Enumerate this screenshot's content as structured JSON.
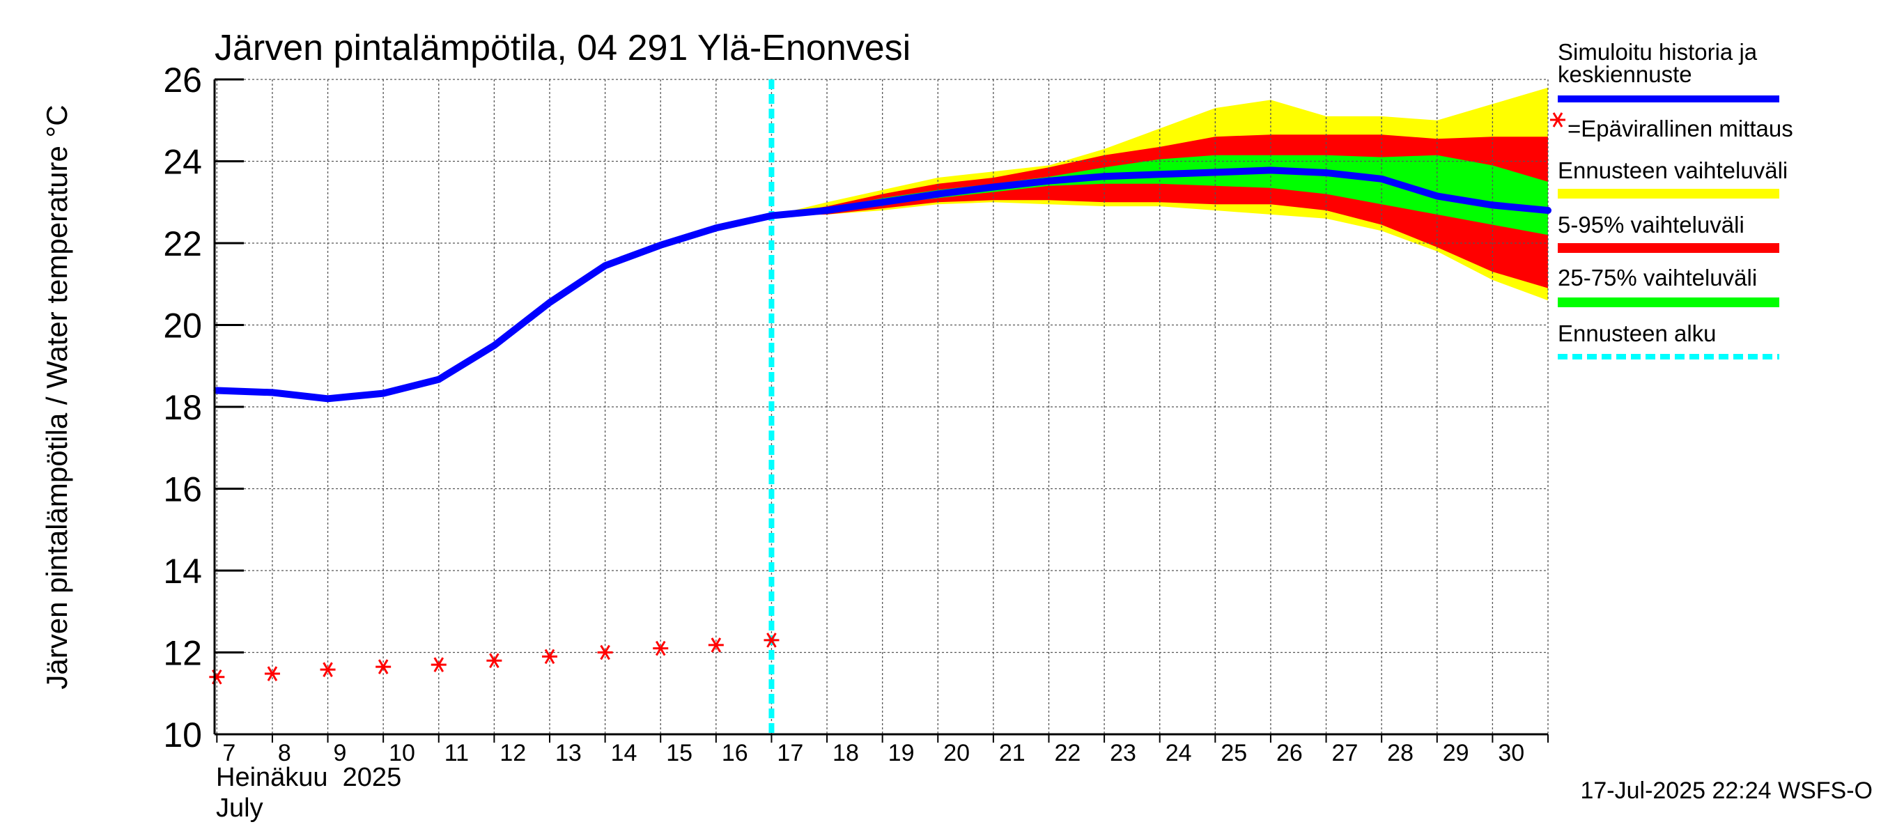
{
  "chart_data": {
    "type": "line",
    "title": "Järven pintalämpötila, 04 291 Ylä-Enonvesi",
    "ylabel": "Järven pintalämpötila / Water temperature °C",
    "ylim": [
      10,
      26
    ],
    "yticks": [
      10,
      12,
      14,
      16,
      18,
      20,
      22,
      24,
      26
    ],
    "xlim": [
      "2025-07-06T23:00",
      "2025-07-31T00:00"
    ],
    "xtick_labels": [
      "7",
      "8",
      "9",
      "10",
      "11",
      "12",
      "13",
      "14",
      "15",
      "16",
      "17",
      "18",
      "19",
      "20",
      "21",
      "22",
      "23",
      "24",
      "25",
      "26",
      "27",
      "28",
      "29",
      "30"
    ],
    "x_caption": {
      "month_fi": "Heinäkuu  2025",
      "month_en": "July"
    },
    "grid": true,
    "legend_position": "right",
    "forecast_start": "2025-07-17T00:00",
    "series": [
      {
        "name": "Simuloitu historia ja keskiennuste",
        "color": "#0000ff",
        "points": [
          [
            "2025-07-07T00:00",
            18.4
          ],
          [
            "2025-07-08T00:00",
            18.35
          ],
          [
            "2025-07-09T00:00",
            18.2
          ],
          [
            "2025-07-10T00:00",
            18.33
          ],
          [
            "2025-07-11T00:00",
            18.67
          ],
          [
            "2025-07-12T00:00",
            19.5
          ],
          [
            "2025-07-13T00:00",
            20.55
          ],
          [
            "2025-07-14T00:00",
            21.45
          ],
          [
            "2025-07-15T00:00",
            21.95
          ],
          [
            "2025-07-16T00:00",
            22.37
          ],
          [
            "2025-07-17T00:00",
            22.67
          ],
          [
            "2025-07-18T00:00",
            22.8
          ],
          [
            "2025-07-19T00:00",
            23.0
          ],
          [
            "2025-07-20T00:00",
            23.2
          ],
          [
            "2025-07-21T00:00",
            23.37
          ],
          [
            "2025-07-22T00:00",
            23.52
          ],
          [
            "2025-07-23T00:00",
            23.63
          ],
          [
            "2025-07-24T00:00",
            23.68
          ],
          [
            "2025-07-25T00:00",
            23.73
          ],
          [
            "2025-07-26T00:00",
            23.78
          ],
          [
            "2025-07-27T00:00",
            23.72
          ],
          [
            "2025-07-28T00:00",
            23.57
          ],
          [
            "2025-07-29T00:00",
            23.15
          ],
          [
            "2025-07-30T00:00",
            22.93
          ],
          [
            "2025-07-31T00:00",
            22.8
          ]
        ]
      },
      {
        "name": "Epävirallinen mittaus",
        "color": "#ff0000",
        "marker": "asterisk",
        "points": [
          [
            "2025-07-07T00:00",
            11.4
          ],
          [
            "2025-07-08T00:00",
            11.48
          ],
          [
            "2025-07-09T00:00",
            11.58
          ],
          [
            "2025-07-10T00:00",
            11.65
          ],
          [
            "2025-07-11T00:00",
            11.7
          ],
          [
            "2025-07-12T00:00",
            11.8
          ],
          [
            "2025-07-13T00:00",
            11.9
          ],
          [
            "2025-07-14T00:00",
            12.0
          ],
          [
            "2025-07-15T00:00",
            12.1
          ],
          [
            "2025-07-16T00:00",
            12.18
          ],
          [
            "2025-07-17T00:00",
            12.3
          ]
        ]
      }
    ],
    "bands": [
      {
        "name": "Ennusteen vaihteluväli",
        "color": "#ffff00",
        "x": [
          "2025-07-17T00:00",
          "2025-07-18T00:00",
          "2025-07-19T00:00",
          "2025-07-20T00:00",
          "2025-07-21T00:00",
          "2025-07-22T00:00",
          "2025-07-23T00:00",
          "2025-07-24T00:00",
          "2025-07-25T00:00",
          "2025-07-26T00:00",
          "2025-07-27T00:00",
          "2025-07-28T00:00",
          "2025-07-29T00:00",
          "2025-07-30T00:00",
          "2025-07-31T00:00"
        ],
        "upper": [
          22.67,
          23.0,
          23.3,
          23.6,
          23.75,
          23.9,
          24.3,
          24.8,
          25.3,
          25.5,
          25.1,
          25.1,
          25.0,
          25.4,
          25.8
        ],
        "lower": [
          22.67,
          22.7,
          22.8,
          22.95,
          23.0,
          22.95,
          22.9,
          22.9,
          22.8,
          22.7,
          22.6,
          22.3,
          21.8,
          21.1,
          20.6
        ]
      },
      {
        "name": "5-95% vaihteluväli",
        "color": "#ff0000",
        "x": [
          "2025-07-17T00:00",
          "2025-07-18T00:00",
          "2025-07-19T00:00",
          "2025-07-20T00:00",
          "2025-07-21T00:00",
          "2025-07-22T00:00",
          "2025-07-23T00:00",
          "2025-07-24T00:00",
          "2025-07-25T00:00",
          "2025-07-26T00:00",
          "2025-07-27T00:00",
          "2025-07-28T00:00",
          "2025-07-29T00:00",
          "2025-07-30T00:00",
          "2025-07-31T00:00"
        ],
        "upper": [
          22.67,
          22.9,
          23.2,
          23.45,
          23.6,
          23.85,
          24.15,
          24.35,
          24.6,
          24.65,
          24.65,
          24.65,
          24.55,
          24.6,
          24.6
        ],
        "lower": [
          22.67,
          22.7,
          22.85,
          23.0,
          23.05,
          23.05,
          23.0,
          23.0,
          22.95,
          22.95,
          22.8,
          22.45,
          21.9,
          21.3,
          20.9
        ]
      },
      {
        "name": "25-75% vaihteluväli",
        "color": "#00ff00",
        "x": [
          "2025-07-17T00:00",
          "2025-07-18T00:00",
          "2025-07-19T00:00",
          "2025-07-20T00:00",
          "2025-07-21T00:00",
          "2025-07-22T00:00",
          "2025-07-23T00:00",
          "2025-07-24T00:00",
          "2025-07-25T00:00",
          "2025-07-26T00:00",
          "2025-07-27T00:00",
          "2025-07-28T00:00",
          "2025-07-29T00:00",
          "2025-07-30T00:00",
          "2025-07-31T00:00"
        ],
        "upper": [
          22.67,
          22.85,
          23.1,
          23.3,
          23.45,
          23.62,
          23.85,
          24.05,
          24.15,
          24.15,
          24.15,
          24.1,
          24.15,
          23.9,
          23.5
        ],
        "lower": [
          22.67,
          22.75,
          22.95,
          23.1,
          23.25,
          23.4,
          23.45,
          23.45,
          23.4,
          23.35,
          23.2,
          22.95,
          22.7,
          22.45,
          22.2
        ]
      }
    ],
    "legend": [
      {
        "label": "Simuloitu historia ja keskiennuste",
        "color": "#0000ff",
        "style": "line"
      },
      {
        "label": "=Epävirallinen mittaus",
        "color": "#ff0000",
        "style": "asterisk"
      },
      {
        "label": "Ennusteen vaihteluväli",
        "color": "#ffff00",
        "style": "thick"
      },
      {
        "label": "5-95% vaihteluväli",
        "color": "#ff0000",
        "style": "thick"
      },
      {
        "label": "25-75% vaihteluväli",
        "color": "#00ff00",
        "style": "thick"
      },
      {
        "label": "Ennusteen alku",
        "color": "#00ffff",
        "style": "dotted"
      }
    ],
    "footer": "17-Jul-2025 22:24 WSFS-O"
  }
}
